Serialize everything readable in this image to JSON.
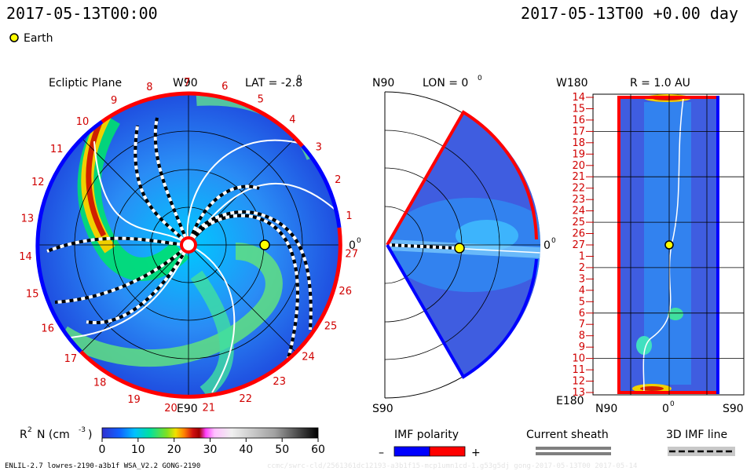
{
  "header": {
    "left_timestamp": "2017-05-13T00:00",
    "right_timestamp": "2017-05-13T00 +0.00 day",
    "legend_label": "Earth",
    "footer_left": "ENLIL-2.7 lowres-2190-a3b1f WSA_V2.2 GONG-2190",
    "footer_right_watermark": "ccmc/swrc-cld/2561361dc12193-a3b1f15-mcp1umn1cd-1.g53g5dj gong-2017-05-13T00 2017-05-14"
  },
  "colors": {
    "positive_polarity": "#ff0000",
    "negative_polarity": "#0000ff",
    "earth": "#ffff00",
    "sheath": "#7f7f7f"
  },
  "chart_data": [
    {
      "type": "heatmap",
      "panel": "ecliptic",
      "title": "Ecliptic Plane",
      "lat_label": "LAT = -2.8",
      "lat_superscript": "0",
      "top_label": "W90",
      "bottom_label": "E90",
      "right_label": "0",
      "right_label_superscript": "0",
      "quantity": "R2 N (cm-3)",
      "rotation_ticks": [
        "27",
        "1",
        "2",
        "3",
        "4",
        "5",
        "6",
        "7",
        "8",
        "9",
        "10",
        "11",
        "12",
        "13",
        "14",
        "15",
        "16",
        "17",
        "18",
        "19",
        "20",
        "21",
        "22",
        "23",
        "24",
        "25",
        "26"
      ],
      "earth_radius_au": 1.0,
      "earth_longitude_deg": 0
    },
    {
      "type": "heatmap",
      "panel": "meridional",
      "title": "LON = 0",
      "title_superscript": "0",
      "top_label": "N90",
      "bottom_label": "S90",
      "right_label": "0",
      "right_label_superscript": "0",
      "earth_radius_au": 1.0,
      "earth_latitude_deg": 0
    },
    {
      "type": "heatmap",
      "panel": "radial-surface",
      "title": "R = 1.0 AU",
      "top_left_label": "W180",
      "bottom_left_label": "E180",
      "x_tick_labels": [
        "N90",
        "0",
        "S90"
      ],
      "zero_superscript": "0",
      "y_tick_labels": [
        "14",
        "15",
        "16",
        "17",
        "18",
        "19",
        "20",
        "21",
        "22",
        "23",
        "24",
        "25",
        "26",
        "27",
        "1",
        "2",
        "3",
        "4",
        "5",
        "6",
        "7",
        "8",
        "9",
        "10",
        "11",
        "12",
        "13"
      ]
    }
  ],
  "colorbar": {
    "label_prefix": "R",
    "label_superscript": "2",
    "label_main": "N (cm",
    "label_exp": "-3",
    "label_close": ")",
    "ticks": [
      "0",
      "10",
      "20",
      "30",
      "40",
      "50",
      "60"
    ],
    "range": [
      0,
      60
    ]
  },
  "legends": {
    "imf_polarity": "IMF polarity",
    "minus": "–",
    "plus": "+",
    "current_sheath": "Current sheath",
    "imf_line": "3D IMF line"
  }
}
